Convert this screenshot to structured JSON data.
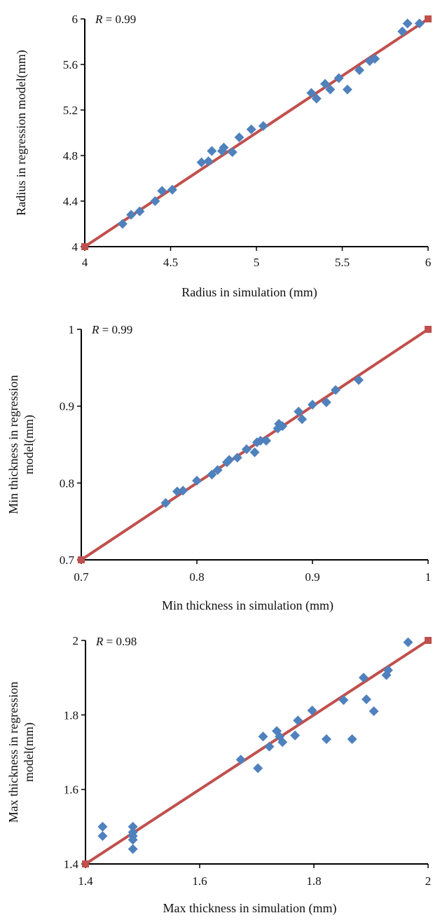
{
  "chart_data": [
    {
      "type": "scatter",
      "annotation": {
        "var": "R",
        "text": " = 0.99"
      },
      "xlabel": "Radius in simulation (mm)",
      "ylabel": [
        "Radius in regression model(mm)"
      ],
      "xlim": [
        4,
        6
      ],
      "ylim": [
        4,
        6
      ],
      "xticks": [
        4,
        4.5,
        5,
        5.5,
        6
      ],
      "yticks": [
        4,
        4.4,
        4.8,
        5.2,
        5.6,
        6
      ],
      "x_tick_labels": [
        "4",
        "4.5",
        "5",
        "5.5",
        "6"
      ],
      "y_tick_labels": [
        "4",
        "4.4",
        "4.8",
        "5.2",
        "5.6",
        "6"
      ],
      "grid": false,
      "marker_color": "#4F81BD",
      "line_color": "#C0504D",
      "line": {
        "x": [
          4,
          6
        ],
        "y": [
          4,
          6
        ]
      },
      "points": [
        [
          4.22,
          4.2
        ],
        [
          4.27,
          4.28
        ],
        [
          4.32,
          4.31
        ],
        [
          4.41,
          4.4
        ],
        [
          4.45,
          4.49
        ],
        [
          4.51,
          4.5
        ],
        [
          4.68,
          4.74
        ],
        [
          4.72,
          4.75
        ],
        [
          4.74,
          4.84
        ],
        [
          4.8,
          4.84
        ],
        [
          4.81,
          4.87
        ],
        [
          4.86,
          4.83
        ],
        [
          4.9,
          4.96
        ],
        [
          4.97,
          5.03
        ],
        [
          5.04,
          5.06
        ],
        [
          5.32,
          5.35
        ],
        [
          5.35,
          5.3
        ],
        [
          5.4,
          5.43
        ],
        [
          5.43,
          5.38
        ],
        [
          5.48,
          5.48
        ],
        [
          5.53,
          5.38
        ],
        [
          5.6,
          5.55
        ],
        [
          5.66,
          5.63
        ],
        [
          5.69,
          5.65
        ],
        [
          5.85,
          5.89
        ],
        [
          5.88,
          5.96
        ],
        [
          5.95,
          5.96
        ]
      ]
    },
    {
      "type": "scatter",
      "annotation": {
        "var": "R",
        "text": " = 0.99"
      },
      "xlabel": "Min thickness in simulation (mm)",
      "ylabel": [
        "Min thickness in regression",
        "model(mm)"
      ],
      "xlim": [
        0.7,
        1
      ],
      "ylim": [
        0.7,
        1
      ],
      "xticks": [
        0.7,
        0.8,
        0.9,
        1
      ],
      "yticks": [
        0.7,
        0.8,
        0.9,
        1
      ],
      "x_tick_labels": [
        "0.7",
        "0.8",
        "0.9",
        "1"
      ],
      "y_tick_labels": [
        "0.7",
        "0.8",
        "0.9",
        "1"
      ],
      "grid": false,
      "marker_color": "#4F81BD",
      "line_color": "#C0504D",
      "line": {
        "x": [
          0.7,
          1
        ],
        "y": [
          0.7,
          1
        ]
      },
      "points": [
        [
          0.773,
          0.774
        ],
        [
          0.783,
          0.789
        ],
        [
          0.788,
          0.79
        ],
        [
          0.8,
          0.803
        ],
        [
          0.813,
          0.811
        ],
        [
          0.818,
          0.817
        ],
        [
          0.826,
          0.827
        ],
        [
          0.828,
          0.83
        ],
        [
          0.835,
          0.833
        ],
        [
          0.843,
          0.844
        ],
        [
          0.85,
          0.84
        ],
        [
          0.852,
          0.853
        ],
        [
          0.855,
          0.855
        ],
        [
          0.86,
          0.855
        ],
        [
          0.87,
          0.871
        ],
        [
          0.871,
          0.877
        ],
        [
          0.874,
          0.874
        ],
        [
          0.888,
          0.893
        ],
        [
          0.891,
          0.883
        ],
        [
          0.9,
          0.902
        ],
        [
          0.912,
          0.905
        ],
        [
          0.92,
          0.921
        ],
        [
          0.94,
          0.934
        ]
      ]
    },
    {
      "type": "scatter",
      "annotation": {
        "var": "R",
        "text": " = 0.98"
      },
      "xlabel": "Max thickness in simulation (mm)",
      "ylabel": [
        "Max thickness in regression",
        "model(mm)"
      ],
      "xlim": [
        1.4,
        2
      ],
      "ylim": [
        1.4,
        2
      ],
      "xticks": [
        1.4,
        1.6,
        1.8,
        2
      ],
      "yticks": [
        1.4,
        1.6,
        1.8,
        2
      ],
      "x_tick_labels": [
        "1.4",
        "1.6",
        "1.8",
        "2"
      ],
      "y_tick_labels": [
        "1.4",
        "1.6",
        "1.8",
        "2"
      ],
      "grid": false,
      "marker_color": "#4F81BD",
      "line_color": "#C0504D",
      "line": {
        "x": [
          1.4,
          2
        ],
        "y": [
          1.4,
          2
        ]
      },
      "points": [
        [
          1.43,
          1.5
        ],
        [
          1.43,
          1.475
        ],
        [
          1.483,
          1.5
        ],
        [
          1.483,
          1.485
        ],
        [
          1.483,
          1.475
        ],
        [
          1.483,
          1.465
        ],
        [
          1.483,
          1.44
        ],
        [
          1.672,
          1.68
        ],
        [
          1.702,
          1.657
        ],
        [
          1.711,
          1.742
        ],
        [
          1.722,
          1.715
        ],
        [
          1.735,
          1.757
        ],
        [
          1.74,
          1.742
        ],
        [
          1.745,
          1.727
        ],
        [
          1.767,
          1.745
        ],
        [
          1.772,
          1.785
        ],
        [
          1.797,
          1.812
        ],
        [
          1.822,
          1.735
        ],
        [
          1.852,
          1.84
        ],
        [
          1.867,
          1.735
        ],
        [
          1.887,
          1.9
        ],
        [
          1.892,
          1.842
        ],
        [
          1.905,
          1.81
        ],
        [
          1.927,
          1.907
        ],
        [
          1.93,
          1.92
        ],
        [
          1.965,
          1.995
        ]
      ]
    }
  ]
}
